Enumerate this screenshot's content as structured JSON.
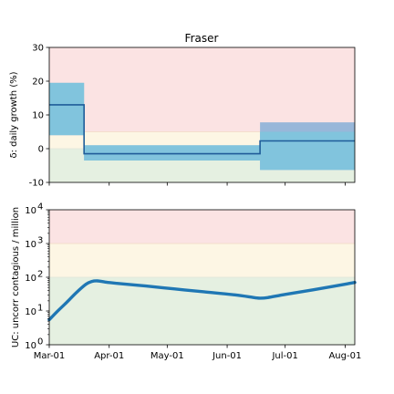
{
  "chart_data": [
    {
      "type": "step",
      "title": "Fraser",
      "ylabel": "δ: daily growth (%)",
      "ylim": [
        -10,
        30
      ],
      "yticks": [
        -10,
        0,
        10,
        20,
        30
      ],
      "x_range": [
        "2020-03-01",
        "2020-08-06"
      ],
      "zones": [
        {
          "name": "red",
          "from": 5,
          "to": 30,
          "color": "#fbe3e3"
        },
        {
          "name": "yellow",
          "from": 0,
          "to": 5,
          "color": "#fdf6e4"
        },
        {
          "name": "green",
          "from": -10,
          "to": 0,
          "color": "#e5f0e1"
        }
      ],
      "segments": [
        {
          "start": "2020-03-01",
          "end": "2020-03-19",
          "value": 13.0,
          "band_outer": [
            4.0,
            19.5
          ],
          "band_inner": [
            4.0,
            19.5
          ]
        },
        {
          "start": "2020-03-19",
          "end": "2020-06-18",
          "value": -1.5,
          "band_outer": [
            -3.5,
            1.0
          ],
          "band_inner": [
            -3.5,
            1.0
          ]
        },
        {
          "start": "2020-06-18",
          "end": "2020-08-06",
          "value": 2.3,
          "band_outer": [
            -6.3,
            7.8
          ],
          "band_inner": [
            -6.3,
            5.0
          ]
        }
      ],
      "colors": {
        "line": "#1f5c99",
        "band_outer": "#92b4d8",
        "band_inner": "#7ec5dd"
      }
    },
    {
      "type": "line",
      "ylabel": "UC: uncorr contagious / million",
      "yscale": "log",
      "ylim": [
        1,
        10000
      ],
      "yticks": [
        {
          "value": 1,
          "base": "10",
          "exp": "0"
        },
        {
          "value": 10,
          "base": "10",
          "exp": "1"
        },
        {
          "value": 100,
          "base": "10",
          "exp": "2"
        },
        {
          "value": 1000,
          "base": "10",
          "exp": "3"
        },
        {
          "value": 10000,
          "base": "10",
          "exp": "4"
        }
      ],
      "x_range": [
        "2020-03-01",
        "2020-08-06"
      ],
      "zones": [
        {
          "name": "red",
          "from": 1000,
          "to": 10000,
          "color": "#fbe3e3"
        },
        {
          "name": "yellow",
          "from": 100,
          "to": 1000,
          "color": "#fdf6e4"
        },
        {
          "name": "green",
          "from": 1,
          "to": 100,
          "color": "#e5f0e1"
        }
      ],
      "series": [
        {
          "x": [
            "2020-03-01",
            "2020-03-05",
            "2020-03-10",
            "2020-03-15",
            "2020-03-20",
            "2020-03-23",
            "2020-03-26",
            "2020-03-30",
            "2020-04-05",
            "2020-04-20",
            "2020-05-05",
            "2020-05-20",
            "2020-06-05",
            "2020-06-15",
            "2020-06-18",
            "2020-06-22",
            "2020-07-01",
            "2020-07-15",
            "2020-08-06"
          ],
          "y": [
            5.5,
            9.5,
            18,
            35,
            62,
            75,
            78,
            72,
            66,
            55,
            45,
            37,
            30,
            25,
            24,
            25,
            31,
            42,
            70
          ],
          "color": "#1f77b4"
        }
      ]
    }
  ],
  "x_tick_labels": [
    "Mar-01",
    "Apr-01",
    "May-01",
    "Jun-01",
    "Jul-01",
    "Aug-01"
  ],
  "x_tick_dates": [
    "2020-03-01",
    "2020-04-01",
    "2020-05-01",
    "2020-06-01",
    "2020-07-01",
    "2020-08-01"
  ]
}
